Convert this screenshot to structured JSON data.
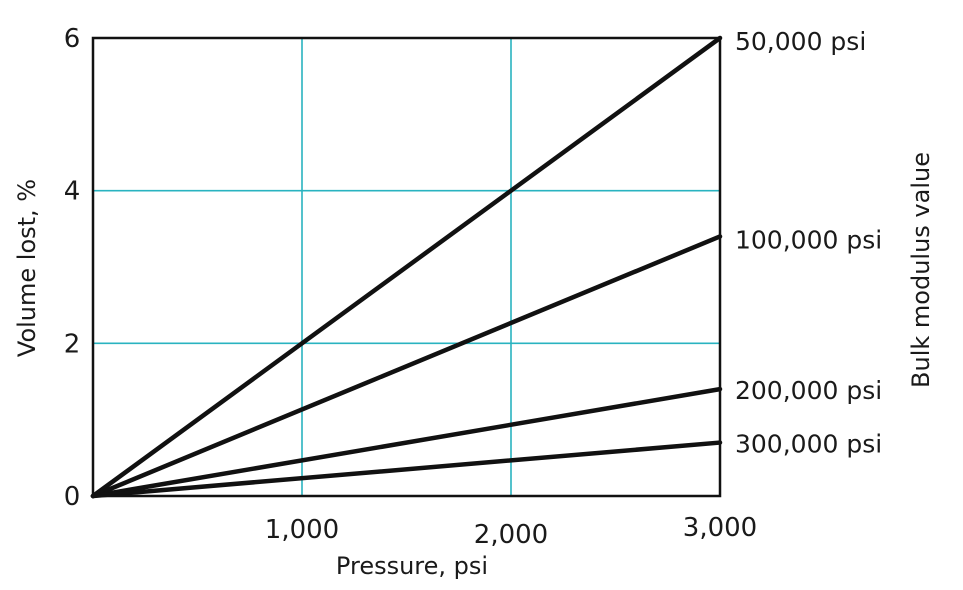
{
  "chart_data": {
    "type": "line",
    "title": "",
    "xlabel": "Pressure, psi",
    "ylabel": "Volume lost, %",
    "right_label": "Bulk modulus value",
    "xlim": [
      0,
      3000
    ],
    "ylim": [
      0,
      6
    ],
    "x_ticks": [
      1000,
      2000,
      3000
    ],
    "x_tick_labels": [
      "1,000",
      "2,000",
      "3,000"
    ],
    "y_ticks": [
      0,
      2,
      4,
      6
    ],
    "y_tick_labels": [
      "0",
      "2",
      "4",
      "6"
    ],
    "grid": true,
    "grid_color": "#29b3c0",
    "line_color": "#111111",
    "series": [
      {
        "name": "50,000 psi",
        "x": [
          0,
          3000
        ],
        "y": [
          0,
          6.0
        ]
      },
      {
        "name": "100,000 psi",
        "x": [
          0,
          3000
        ],
        "y": [
          0,
          3.4
        ]
      },
      {
        "name": "200,000 psi",
        "x": [
          0,
          3000
        ],
        "y": [
          0,
          1.4
        ]
      },
      {
        "name": "300,000 psi",
        "x": [
          0,
          3000
        ],
        "y": [
          0,
          0.7
        ]
      }
    ]
  }
}
